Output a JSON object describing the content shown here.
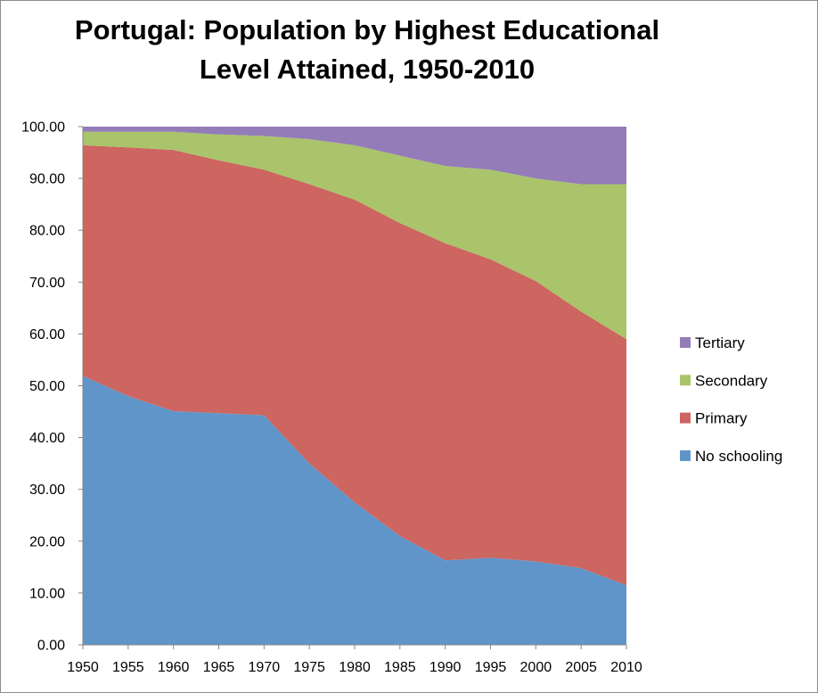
{
  "chart_data": {
    "type": "area",
    "stacked": true,
    "title": "Portugal: Population by Highest Educational Level Attained, 1950-2010",
    "title_lines": [
      "Portugal: Population by Highest Educational",
      "Level Attained, 1950-2010"
    ],
    "xlabel": "",
    "ylabel": "",
    "x": [
      1950,
      1955,
      1960,
      1965,
      1970,
      1975,
      1980,
      1985,
      1990,
      1995,
      2000,
      2005,
      2010
    ],
    "x_tick_labels": [
      "1950",
      "1955",
      "1960",
      "1965",
      "1970",
      "1975",
      "1980",
      "1985",
      "1990",
      "1995",
      "2000",
      "2005",
      "2010"
    ],
    "ylim": [
      0,
      100
    ],
    "y_ticks": [
      0,
      10,
      20,
      30,
      40,
      50,
      60,
      70,
      80,
      90,
      100
    ],
    "y_tick_labels": [
      "0.00",
      "10.00",
      "20.00",
      "30.00",
      "40.00",
      "50.00",
      "60.00",
      "70.00",
      "80.00",
      "90.00",
      "100.00"
    ],
    "grid": false,
    "legend_position": "right",
    "series": [
      {
        "name": "No schooling",
        "color": "#6095c9",
        "values": [
          51.9,
          48.0,
          45.1,
          44.7,
          44.3,
          35.0,
          27.5,
          21.0,
          16.3,
          16.8,
          16.1,
          14.8,
          11.5
        ]
      },
      {
        "name": "Primary",
        "color": "#cd6560",
        "values": [
          44.5,
          48.0,
          50.4,
          48.8,
          47.4,
          53.9,
          58.4,
          60.4,
          61.2,
          57.6,
          54.1,
          49.5,
          47.5
        ]
      },
      {
        "name": "Secondary",
        "color": "#a9c46b",
        "values": [
          2.6,
          3.0,
          3.5,
          5.0,
          6.5,
          8.7,
          10.5,
          13.0,
          14.9,
          17.3,
          19.8,
          24.6,
          29.9
        ]
      },
      {
        "name": "Tertiary",
        "color": "#937cb8",
        "values": [
          1.0,
          1.0,
          1.0,
          1.5,
          1.8,
          2.4,
          3.6,
          5.6,
          7.6,
          8.3,
          10.0,
          11.1,
          11.1
        ]
      }
    ]
  }
}
